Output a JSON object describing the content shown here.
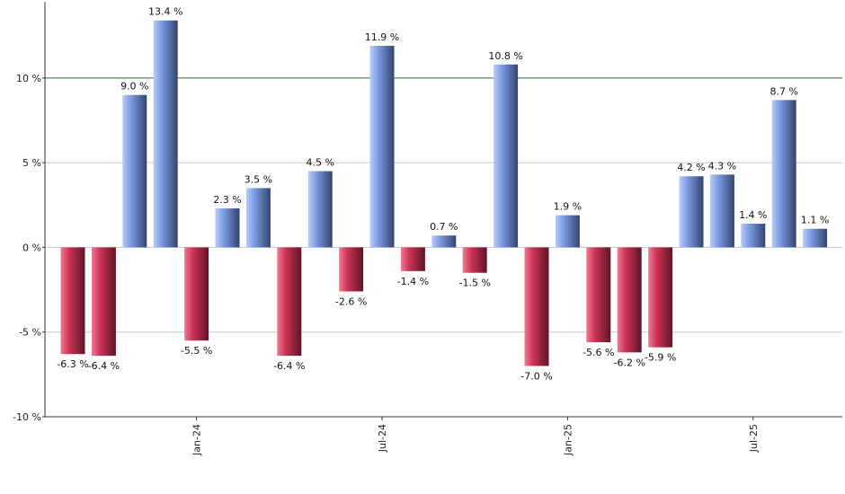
{
  "chart_data": {
    "type": "bar",
    "ylim": [
      -10,
      14.5
    ],
    "y_ticks": [
      {
        "value": 10,
        "label": "10 %"
      },
      {
        "value": 5,
        "label": "5 %"
      },
      {
        "value": 0,
        "label": "0 %"
      },
      {
        "value": -5,
        "label": "-5 %"
      },
      {
        "value": -10,
        "label": "-10 %"
      }
    ],
    "reference_line": {
      "value": 10,
      "color": "#2e7d32"
    },
    "grid": true,
    "x_ticks": [
      {
        "bar_index": 4,
        "label": "Jan-24"
      },
      {
        "bar_index": 10,
        "label": "Jul-24"
      },
      {
        "bar_index": 16,
        "label": "Jan-25"
      },
      {
        "bar_index": 22,
        "label": "Jul-25"
      }
    ],
    "values": [
      -6.3,
      -6.4,
      9.0,
      13.4,
      -5.5,
      2.3,
      3.5,
      -6.4,
      4.5,
      -2.6,
      11.9,
      -1.4,
      0.7,
      -1.5,
      10.8,
      -7.0,
      1.9,
      -5.6,
      -6.2,
      -5.9,
      4.2,
      4.3,
      1.4,
      8.7,
      1.1
    ],
    "labels": [
      "-6.3 %",
      "-6.4 %",
      "9.0 %",
      "13.4 %",
      "-5.5 %",
      "2.3 %",
      "3.5 %",
      "-6.4 %",
      "4.5 %",
      "-2.6 %",
      "11.9 %",
      "-1.4 %",
      "0.7 %",
      "-1.5 %",
      "10.8 %",
      "-7.0 %",
      "1.9 %",
      "-5.6 %",
      "-6.2 %",
      "-5.9 %",
      "4.2 %",
      "4.3 %",
      "1.4 %",
      "8.7 %",
      "1.1 %"
    ],
    "colors": {
      "positive": "#7a9ae0",
      "negative": "#cc3355",
      "grid": "#c8c8c8",
      "axis": "#333333"
    }
  }
}
